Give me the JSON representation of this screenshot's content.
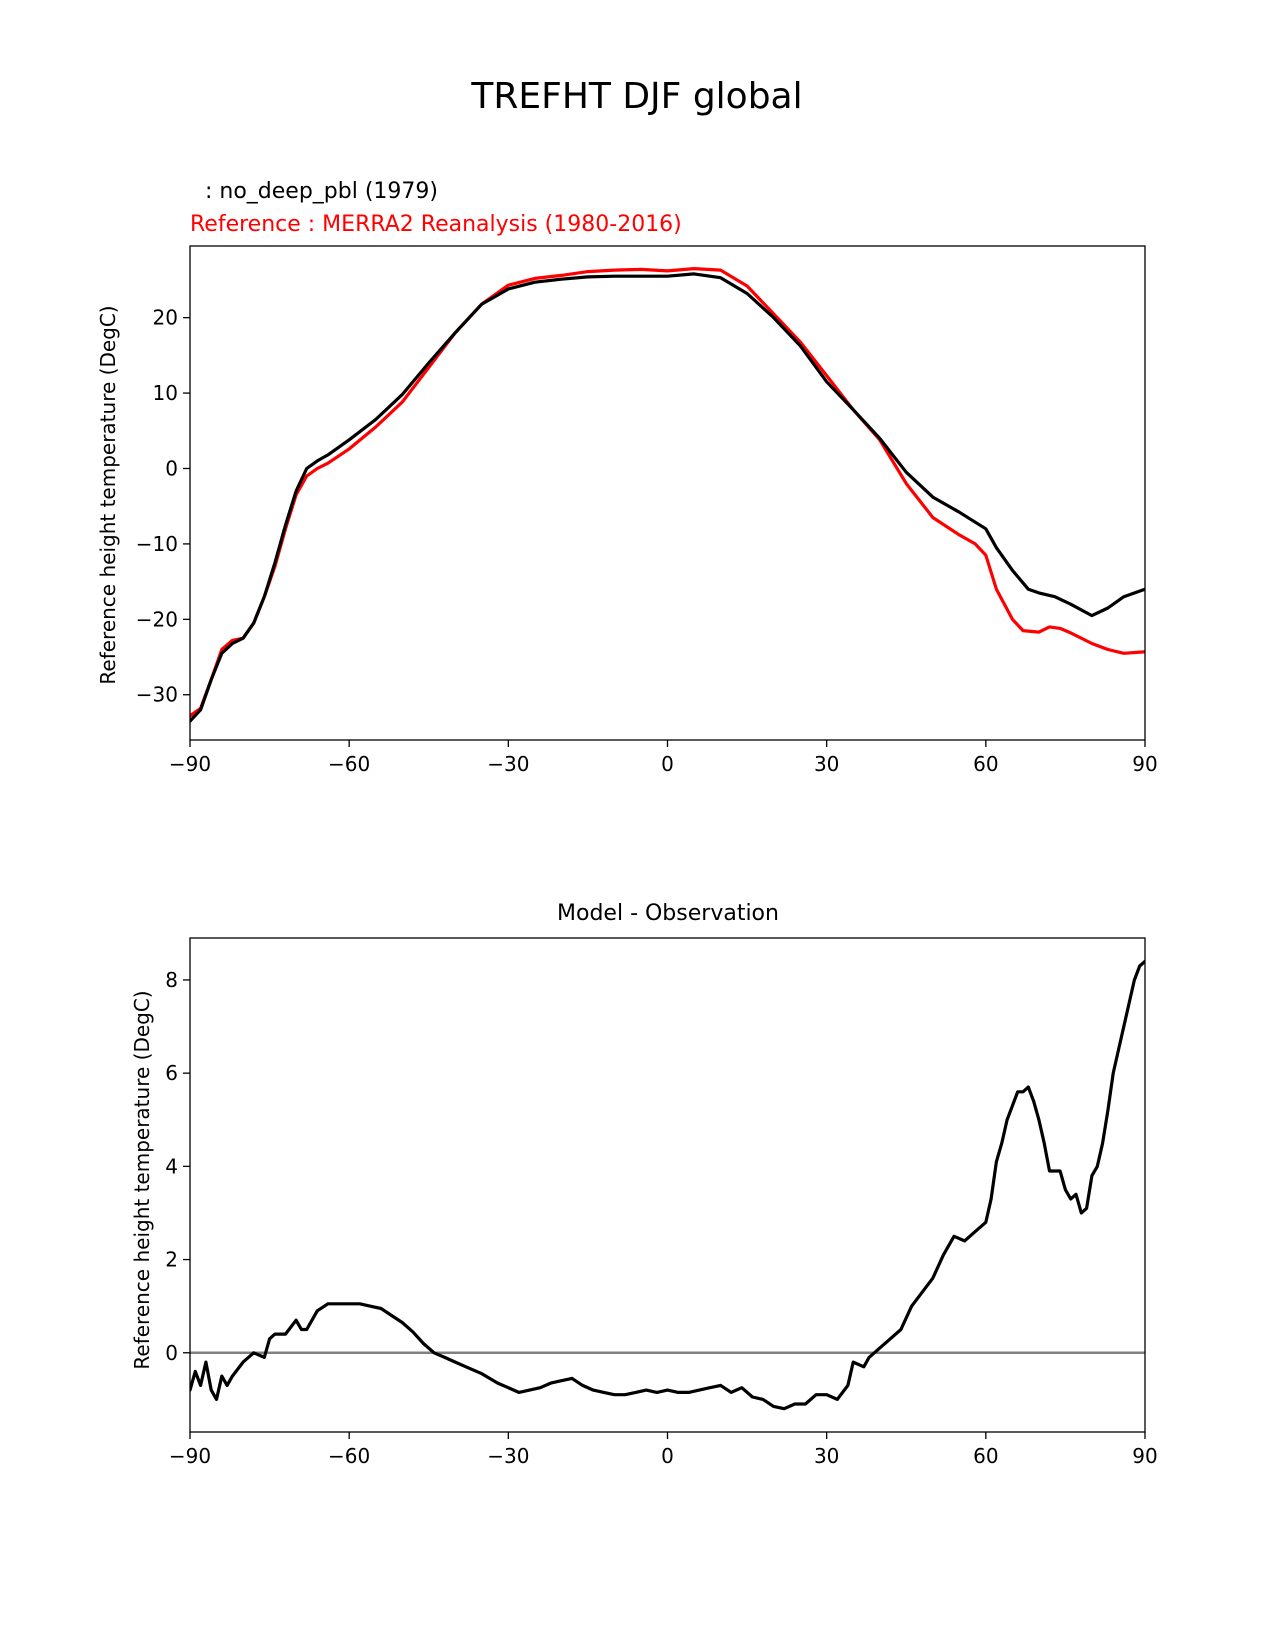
{
  "figure": {
    "title": "TREFHT DJF global"
  },
  "chart_data": [
    {
      "type": "line",
      "test_label": ": no_deep_pbl (1979)",
      "ref_label": "Reference : MERRA2 Reanalysis (1980-2016)",
      "title": "",
      "xlabel": "",
      "ylabel": "Reference height temperature (DegC)",
      "xlim": [
        -90,
        90
      ],
      "ylim": [
        -36,
        29.5
      ],
      "xticks": [
        "−90",
        "−60",
        "−30",
        "0",
        "30",
        "60",
        "90"
      ],
      "yticks": [
        "−30",
        "−20",
        "−10",
        "0",
        "10",
        "20"
      ],
      "colors": {
        "test": "#000000",
        "reference": "#ff0000"
      },
      "series": [
        {
          "name": "no_deep_pbl (1979)",
          "x": [
            -90,
            -88,
            -86,
            -84,
            -82,
            -80,
            -78,
            -76,
            -74,
            -72,
            -70,
            -68,
            -66,
            -64,
            -60,
            -55,
            -50,
            -45,
            -40,
            -35,
            -30,
            -25,
            -20,
            -15,
            -10,
            -5,
            0,
            5,
            10,
            15,
            20,
            25,
            30,
            35,
            40,
            45,
            50,
            55,
            60,
            62,
            65,
            68,
            70,
            73,
            76,
            80,
            83,
            86,
            90
          ],
          "values": [
            -33.5,
            -32,
            -28,
            -24.5,
            -23.2,
            -22.5,
            -20.5,
            -17,
            -12.5,
            -7.5,
            -3,
            0,
            1,
            1.8,
            3.8,
            6.5,
            9.8,
            14,
            18,
            21.8,
            23.8,
            24.7,
            25.1,
            25.4,
            25.5,
            25.5,
            25.5,
            25.8,
            25.3,
            23.2,
            20,
            16.3,
            11.5,
            7.8,
            4,
            -0.5,
            -3.8,
            -5.8,
            -8,
            -10.5,
            -13.5,
            -16,
            -16.5,
            -17,
            -18,
            -19.5,
            -18.5,
            -17,
            -16
          ]
        },
        {
          "name": "MERRA2 Reanalysis (1980-2016)",
          "x": [
            -90,
            -88,
            -86,
            -84,
            -82,
            -80,
            -78,
            -76,
            -74,
            -72,
            -70,
            -68,
            -66,
            -64,
            -60,
            -55,
            -50,
            -45,
            -40,
            -35,
            -30,
            -25,
            -20,
            -15,
            -10,
            -5,
            0,
            5,
            10,
            15,
            20,
            25,
            30,
            35,
            40,
            45,
            50,
            55,
            58,
            60,
            62,
            65,
            67,
            70,
            72,
            74,
            76,
            78,
            80,
            83,
            86,
            90
          ],
          "values": [
            -32.8,
            -31.8,
            -28,
            -24,
            -22.8,
            -22.5,
            -20.5,
            -17,
            -13,
            -8,
            -3.5,
            -1,
            0,
            0.7,
            2.6,
            5.5,
            8.8,
            13.4,
            18,
            21.8,
            24.3,
            25.2,
            25.6,
            26.1,
            26.3,
            26.4,
            26.2,
            26.5,
            26.3,
            24.2,
            20.5,
            16.8,
            12.3,
            7.8,
            3.8,
            -2,
            -6.5,
            -8.8,
            -10,
            -11.5,
            -16,
            -20,
            -21.5,
            -21.7,
            -21,
            -21.2,
            -21.8,
            -22.5,
            -23.2,
            -24,
            -24.5,
            -24.3
          ]
        }
      ]
    },
    {
      "type": "line",
      "title": "Model - Observation",
      "xlabel": "",
      "ylabel": "Reference height temperature (DegC)",
      "xlim": [
        -90,
        90
      ],
      "ylim": [
        -1.7,
        8.9
      ],
      "xticks": [
        "−90",
        "−60",
        "−30",
        "0",
        "30",
        "60",
        "90"
      ],
      "yticks": [
        "0",
        "2",
        "4",
        "6",
        "8"
      ],
      "zero_line_color": "#808080",
      "colors": {
        "difference": "#000000"
      },
      "series": [
        {
          "name": "difference",
          "x": [
            -90,
            -89,
            -88,
            -87,
            -86,
            -85,
            -84,
            -83,
            -82,
            -80,
            -78,
            -76,
            -75,
            -74,
            -72,
            -70,
            -69,
            -68,
            -66,
            -64,
            -62,
            -60,
            -58,
            -56,
            -54,
            -52,
            -50,
            -48,
            -46,
            -44,
            -42,
            -40,
            -38,
            -35,
            -32,
            -30,
            -28,
            -26,
            -24,
            -22,
            -20,
            -18,
            -16,
            -14,
            -12,
            -10,
            -8,
            -6,
            -4,
            -2,
            0,
            2,
            4,
            6,
            8,
            10,
            12,
            14,
            16,
            18,
            20,
            22,
            24,
            26,
            28,
            30,
            32,
            34,
            35,
            37,
            38,
            40,
            42,
            44,
            46,
            48,
            50,
            52,
            54,
            56,
            58,
            60,
            61,
            62,
            63,
            64,
            65,
            66,
            67,
            68,
            69,
            70,
            71,
            72,
            73,
            74,
            75,
            76,
            77,
            78,
            79,
            80,
            81,
            82,
            83,
            84,
            85,
            86,
            87,
            88,
            89,
            90
          ],
          "values": [
            -0.8,
            -0.4,
            -0.7,
            -0.2,
            -0.8,
            -1.0,
            -0.5,
            -0.7,
            -0.5,
            -0.2,
            0.0,
            -0.1,
            0.3,
            0.4,
            0.4,
            0.7,
            0.5,
            0.5,
            0.9,
            1.05,
            1.05,
            1.05,
            1.05,
            1.0,
            0.95,
            0.8,
            0.65,
            0.45,
            0.2,
            0.0,
            -0.1,
            -0.2,
            -0.3,
            -0.45,
            -0.65,
            -0.75,
            -0.85,
            -0.8,
            -0.75,
            -0.65,
            -0.6,
            -0.55,
            -0.7,
            -0.8,
            -0.85,
            -0.9,
            -0.9,
            -0.85,
            -0.8,
            -0.85,
            -0.8,
            -0.85,
            -0.85,
            -0.8,
            -0.75,
            -0.7,
            -0.85,
            -0.75,
            -0.95,
            -1.0,
            -1.15,
            -1.2,
            -1.1,
            -1.1,
            -0.9,
            -0.9,
            -1.0,
            -0.7,
            -0.2,
            -0.3,
            -0.1,
            0.1,
            0.3,
            0.5,
            1.0,
            1.3,
            1.6,
            2.1,
            2.5,
            2.4,
            2.6,
            2.8,
            3.3,
            4.1,
            4.5,
            5.0,
            5.3,
            5.6,
            5.6,
            5.7,
            5.4,
            5.0,
            4.5,
            3.9,
            3.9,
            3.9,
            3.5,
            3.3,
            3.4,
            3.0,
            3.1,
            3.8,
            4.0,
            4.5,
            5.2,
            6.0,
            6.5,
            7.0,
            7.5,
            8.0,
            8.3,
            8.4
          ]
        }
      ]
    }
  ]
}
